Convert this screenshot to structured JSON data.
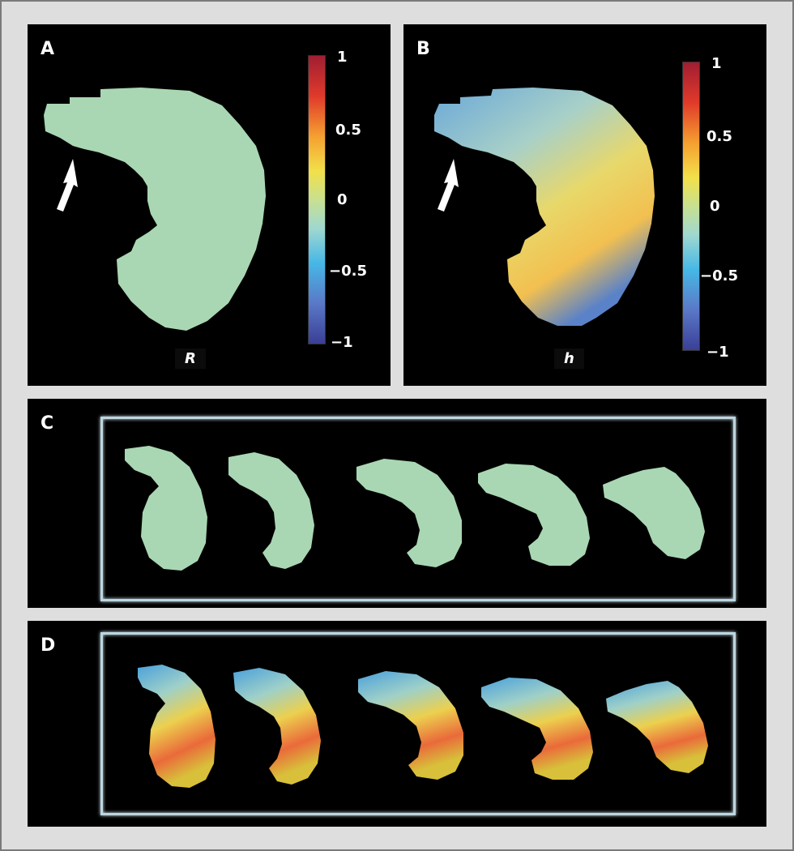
{
  "panels": {
    "a": {
      "letter": "A",
      "label": "R"
    },
    "b": {
      "letter": "B",
      "label": "h"
    },
    "c": {
      "letter": "C"
    },
    "d": {
      "letter": "D"
    }
  },
  "colorbar": {
    "ticks": [
      "1",
      "0.5",
      "0",
      "−0.5",
      "−1"
    ],
    "colors": [
      "#a01e32",
      "#e03a2a",
      "#f5a030",
      "#f2e04a",
      "#c8e090",
      "#9fd8d0",
      "#46b8e6",
      "#5a78c8",
      "#3a3f96"
    ]
  },
  "colors": {
    "uniform_fill": "#a9d7b3",
    "background": "#000000",
    "arrow": "#ffffff"
  }
}
